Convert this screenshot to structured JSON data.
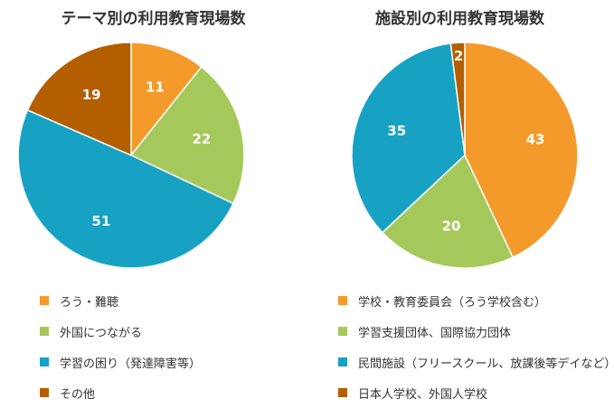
{
  "colors": {
    "orange": "#F39A2B",
    "green": "#A5C85A",
    "blue": "#17A2C4",
    "brown": "#B35F00"
  },
  "chart_data": [
    {
      "type": "pie",
      "title": "テーマ別の利用教育現場数",
      "categories": [
        "ろう・難聴",
        "外国につながる",
        "学習の困り（発達障害等）",
        "その他"
      ],
      "values": [
        11,
        22,
        51,
        19
      ],
      "colors": [
        "#F39A2B",
        "#A5C85A",
        "#17A2C4",
        "#B35F00"
      ],
      "legend": "bottom"
    },
    {
      "type": "pie",
      "title": "施設別の利用教育現場数",
      "categories": [
        "学校・教育委員会（ろう学校含む）",
        "学習支援団体、国際協力団体",
        "民間施設（フリースクール、放課後等デイなど）",
        "日本人学校、外国人学校"
      ],
      "values": [
        43,
        20,
        35,
        2
      ],
      "colors": [
        "#F39A2B",
        "#A5C85A",
        "#17A2C4",
        "#B35F00"
      ],
      "legend": "bottom"
    }
  ]
}
